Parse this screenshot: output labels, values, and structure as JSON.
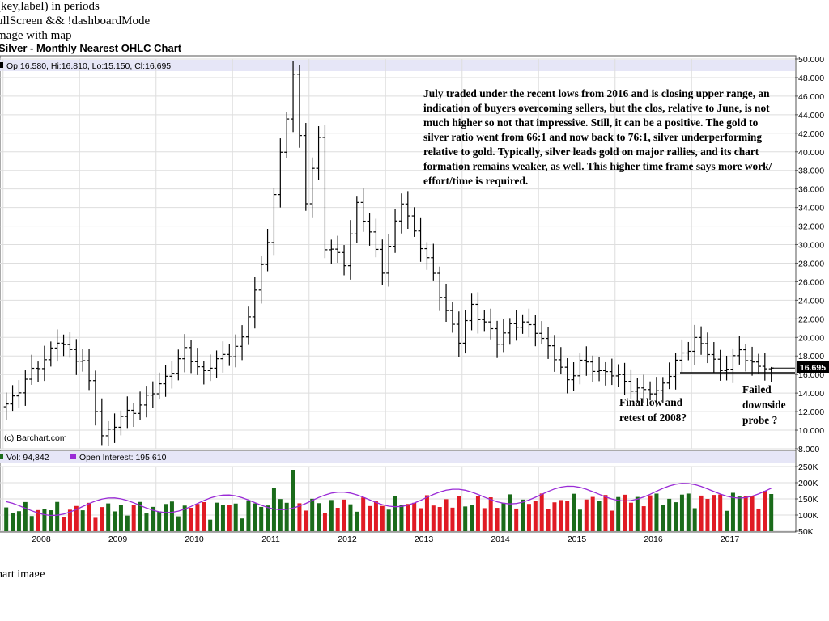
{
  "header": {
    "line1": "(key,label) in periods",
    "line2": "ullScreen && !dashboardMode",
    "line3": "mage with map",
    "title": "Silver - Monthly Nearest OHLC Chart"
  },
  "footer": {
    "caption": "hart image"
  },
  "chart_data": {
    "type": "ohlc",
    "title": "Silver - Monthly Nearest OHLC Chart",
    "ohlc_header": "Op:16.580, Hi:16.810, Lo:15.150, Cl:16.695",
    "last_price_label": "16.695",
    "copyright": "(c) Barchart.com",
    "price_axis": {
      "side": "right",
      "range": [
        8,
        50
      ],
      "ticks": [
        "50.000",
        "48.000",
        "46.000",
        "44.000",
        "42.000",
        "40.000",
        "38.000",
        "36.000",
        "34.000",
        "32.000",
        "30.000",
        "28.000",
        "26.000",
        "24.000",
        "22.000",
        "20.000",
        "18.000",
        "16.000",
        "14.000",
        "12.000",
        "10.000",
        "8.000"
      ]
    },
    "time_axis": {
      "labels": [
        "2008",
        "2009",
        "2010",
        "2011",
        "2012",
        "2013",
        "2014",
        "2015",
        "2016",
        "2017"
      ]
    },
    "price_anchors": [
      {
        "date": "2007-07",
        "close": 12.8
      },
      {
        "date": "2008-03",
        "close": 19.5
      },
      {
        "date": "2008-07",
        "close": 17.5
      },
      {
        "date": "2008-10",
        "close": 9.5
      },
      {
        "date": "2009-06",
        "close": 14.0
      },
      {
        "date": "2009-11",
        "close": 18.4
      },
      {
        "date": "2010-02",
        "close": 16.3
      },
      {
        "date": "2010-08",
        "close": 19.6
      },
      {
        "date": "2010-12",
        "close": 30.6
      },
      {
        "date": "2011-04",
        "close": 48.5
      },
      {
        "date": "2011-06",
        "close": 34.5
      },
      {
        "date": "2011-08",
        "close": 41.5
      },
      {
        "date": "2011-09",
        "close": 30.0
      },
      {
        "date": "2011-12",
        "close": 28.0
      },
      {
        "date": "2012-02",
        "close": 34.5
      },
      {
        "date": "2012-06",
        "close": 27.5
      },
      {
        "date": "2012-09",
        "close": 34.5
      },
      {
        "date": "2012-12",
        "close": 30.0
      },
      {
        "date": "2013-06",
        "close": 19.5
      },
      {
        "date": "2013-08",
        "close": 23.5
      },
      {
        "date": "2013-12",
        "close": 19.5
      },
      {
        "date": "2014-02",
        "close": 21.5
      },
      {
        "date": "2014-06",
        "close": 21.0
      },
      {
        "date": "2014-11",
        "close": 15.5
      },
      {
        "date": "2015-01",
        "close": 17.2
      },
      {
        "date": "2015-06",
        "close": 16.0
      },
      {
        "date": "2015-11",
        "close": 14.0
      },
      {
        "date": "2016-01",
        "close": 14.2
      },
      {
        "date": "2016-07",
        "close": 20.0
      },
      {
        "date": "2016-11",
        "close": 16.5
      },
      {
        "date": "2017-02",
        "close": 18.3
      },
      {
        "date": "2017-05",
        "close": 16.9
      },
      {
        "date": "2017-07",
        "close": 16.695
      }
    ],
    "volume": {
      "label": "Vol: 94,842",
      "open_interest_label": "Open Interest: 195,610",
      "axis_ticks": [
        "250K",
        "200K",
        "150K",
        "100K",
        "50K"
      ],
      "range": [
        50000,
        250000
      ],
      "up_color": "#1a6b1a",
      "down_color": "#e01b24",
      "oi_color": "#9a2bd6"
    },
    "annotations": {
      "main_text": [
        "July traded under the recent lows from 2016 and is closing upper range, an",
        "indication of buyers overcoming sellers, but the clos, relative to June, is not",
        "much higher so not that impressive.  Still, it can be a positive.  The gold to",
        "silver ratio went from 66:1 and now back to 76:1, silver underperforming",
        "relative to gold.  Typically, silver leads gold on major rallies, and its chart",
        "formation remains weaker, as well.  This higher time frame says more work/",
        "effort/time is required."
      ],
      "final_low": [
        "Final low and",
        "retest of 2008?"
      ],
      "failed_probe": [
        "Failed",
        "downside",
        "probe ?"
      ]
    }
  }
}
